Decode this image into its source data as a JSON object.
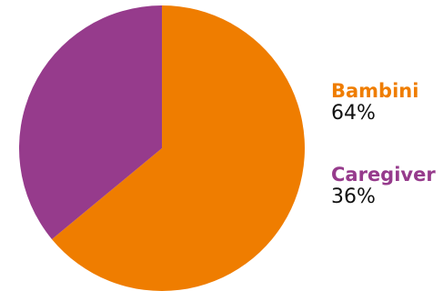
{
  "chart_data": {
    "type": "pie",
    "slices": [
      {
        "name": "Bambini",
        "value": 64,
        "label": "64%",
        "color": "#EF7D00"
      },
      {
        "name": "Caregiver",
        "value": 36,
        "label": "36%",
        "color": "#963B8C"
      }
    ],
    "start_angle_deg": 0,
    "direction": "clockwise",
    "legend_placement": "right"
  }
}
